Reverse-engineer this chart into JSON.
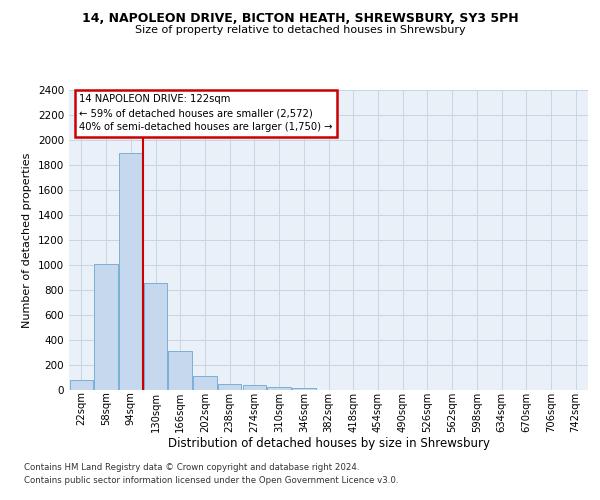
{
  "title1": "14, NAPOLEON DRIVE, BICTON HEATH, SHREWSBURY, SY3 5PH",
  "title2": "Size of property relative to detached houses in Shrewsbury",
  "xlabel": "Distribution of detached houses by size in Shrewsbury",
  "ylabel": "Number of detached properties",
  "bin_labels": [
    "22sqm",
    "58sqm",
    "94sqm",
    "130sqm",
    "166sqm",
    "202sqm",
    "238sqm",
    "274sqm",
    "310sqm",
    "346sqm",
    "382sqm",
    "418sqm",
    "454sqm",
    "490sqm",
    "526sqm",
    "562sqm",
    "598sqm",
    "634sqm",
    "670sqm",
    "706sqm",
    "742sqm"
  ],
  "bar_values": [
    80,
    1010,
    1900,
    860,
    315,
    110,
    50,
    40,
    25,
    20,
    0,
    0,
    0,
    0,
    0,
    0,
    0,
    0,
    0,
    0,
    0
  ],
  "bar_color": "#c5d8ee",
  "bar_edge_color": "#7aafd4",
  "vline_x": 2.5,
  "vline_color": "#cc0000",
  "annotation_line1": "14 NAPOLEON DRIVE: 122sqm",
  "annotation_line2": "← 59% of detached houses are smaller (2,572)",
  "annotation_line3": "40% of semi-detached houses are larger (1,750) →",
  "annotation_box_facecolor": "#ffffff",
  "annotation_box_edgecolor": "#cc0000",
  "ylim": [
    0,
    2400
  ],
  "yticks": [
    0,
    200,
    400,
    600,
    800,
    1000,
    1200,
    1400,
    1600,
    1800,
    2000,
    2200,
    2400
  ],
  "bg_color": "#eaf0f8",
  "grid_color": "#c8d4e4",
  "footer1": "Contains HM Land Registry data © Crown copyright and database right 2024.",
  "footer2": "Contains public sector information licensed under the Open Government Licence v3.0."
}
